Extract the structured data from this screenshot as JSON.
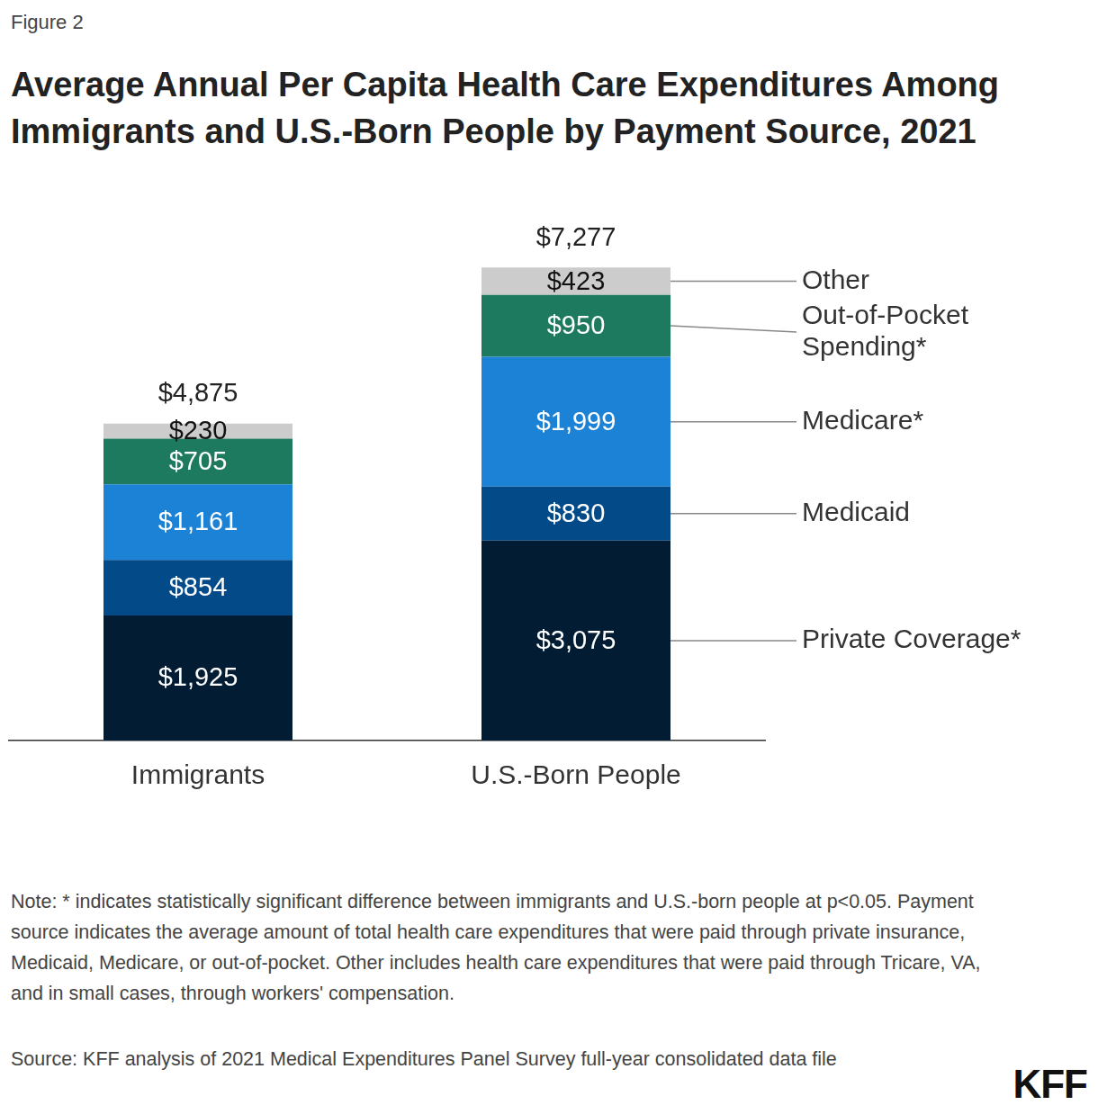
{
  "figure_label": "Figure 2",
  "chart_data": {
    "type": "bar",
    "title": "Average Annual Per Capita Health Care Expenditures Among Immigrants and U.S.-Born People by Payment Source, 2021",
    "categories": [
      "Immigrants",
      "U.S.-Born People"
    ],
    "series": [
      {
        "name": "Private Coverage*",
        "color": "#021d33",
        "values": [
          1925,
          3075
        ],
        "value_labels": [
          "$1,925",
          "$3,075"
        ]
      },
      {
        "name": "Medicaid",
        "color": "#034a89",
        "values": [
          854,
          830
        ],
        "value_labels": [
          "$854",
          "$830"
        ]
      },
      {
        "name": "Medicare*",
        "color": "#1c82d6",
        "values": [
          1161,
          1999
        ],
        "value_labels": [
          "$1,161",
          "$1,999"
        ]
      },
      {
        "name": "Out-of-Pocket Spending*",
        "color": "#1e7a5e",
        "values": [
          705,
          950
        ],
        "value_labels": [
          "$705",
          "$950"
        ]
      },
      {
        "name": "Other",
        "color": "#cccccc",
        "values": [
          230,
          423
        ],
        "value_labels": [
          "$230",
          "$423"
        ]
      }
    ],
    "totals": [
      4875,
      7277
    ],
    "total_labels": [
      "$4,875",
      "$7,277"
    ],
    "stacked": true,
    "data_labels": true,
    "grid": false,
    "tick_labels": "x",
    "ylim": [
      0,
      8000
    ]
  },
  "note": "Note: * indicates statistically significant difference between immigrants and U.S.-born people at p<0.05. Payment source indicates the average amount of total health care expenditures that were paid through private insurance, Medicaid, Medicare, or out-of-pocket. Other includes health care expenditures that were paid through Tricare, VA, and in small cases, through workers' compensation.",
  "source": "Source: KFF analysis of 2021 Medical Expenditures Panel Survey full-year consolidated data file",
  "logo": "KFF"
}
